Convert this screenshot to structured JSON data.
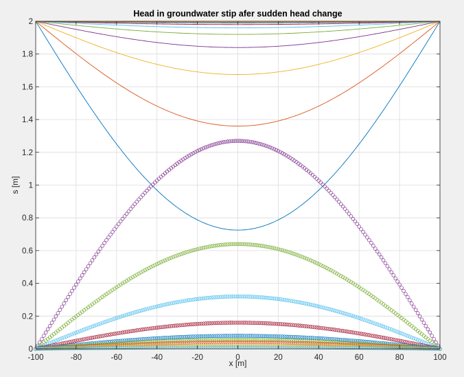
{
  "chart_data": {
    "type": "line",
    "title": "Head in groundwater stip afer sudden head change",
    "xlabel": "x [m]",
    "ylabel": "s [m]",
    "xlim": [
      -100,
      100
    ],
    "ylim": [
      0,
      2
    ],
    "xticks": [
      -100,
      -80,
      -60,
      -40,
      -20,
      0,
      20,
      40,
      60,
      80,
      100
    ],
    "yticks": [
      0,
      0.2,
      0.4,
      0.6,
      0.8,
      1,
      1.2,
      1.4,
      1.6,
      1.8,
      2
    ],
    "grid": true,
    "legend": "none",
    "profile": "cosine",
    "series_lines": [
      {
        "style": "line",
        "color": "#0072bd",
        "edge_value": 2,
        "center_value": 0.725
      },
      {
        "style": "line",
        "color": "#d95319",
        "edge_value": 2,
        "center_value": 1.36
      },
      {
        "style": "line",
        "color": "#edb120",
        "edge_value": 2,
        "center_value": 1.675
      },
      {
        "style": "line",
        "color": "#7e2f8e",
        "edge_value": 2,
        "center_value": 1.84
      },
      {
        "style": "line",
        "color": "#77ac30",
        "edge_value": 2,
        "center_value": 1.92
      },
      {
        "style": "line",
        "color": "#4dbeee",
        "edge_value": 2,
        "center_value": 1.96
      },
      {
        "style": "line",
        "color": "#a2142f",
        "edge_value": 2,
        "center_value": 1.98
      },
      {
        "style": "line",
        "color": "#0072bd",
        "edge_value": 2,
        "center_value": 1.99
      },
      {
        "style": "line",
        "color": "#d95319",
        "edge_value": 2,
        "center_value": 1.995
      },
      {
        "style": "line",
        "color": "#edb120",
        "edge_value": 2,
        "center_value": 1.998
      }
    ],
    "series_markers": [
      {
        "style": "circle",
        "color": "#7e2f8e",
        "edge_value": 0,
        "center_value": 1.27
      },
      {
        "style": "circle",
        "color": "#77ac30",
        "edge_value": 0,
        "center_value": 0.64
      },
      {
        "style": "circle",
        "color": "#4dbeee",
        "edge_value": 0,
        "center_value": 0.32
      },
      {
        "style": "circle",
        "color": "#a2142f",
        "edge_value": 0,
        "center_value": 0.16
      },
      {
        "style": "circle",
        "color": "#0072bd",
        "edge_value": 0,
        "center_value": 0.08
      },
      {
        "style": "circle",
        "color": "#77ac30",
        "edge_value": 0,
        "center_value": 0.055
      },
      {
        "style": "circle",
        "color": "#d95319",
        "edge_value": 0,
        "center_value": 0.04
      },
      {
        "style": "circle",
        "color": "#edb120",
        "edge_value": 0,
        "center_value": 0.02
      },
      {
        "style": "circle",
        "color": "#4dbeee",
        "edge_value": 0,
        "center_value": 0.01
      }
    ]
  }
}
